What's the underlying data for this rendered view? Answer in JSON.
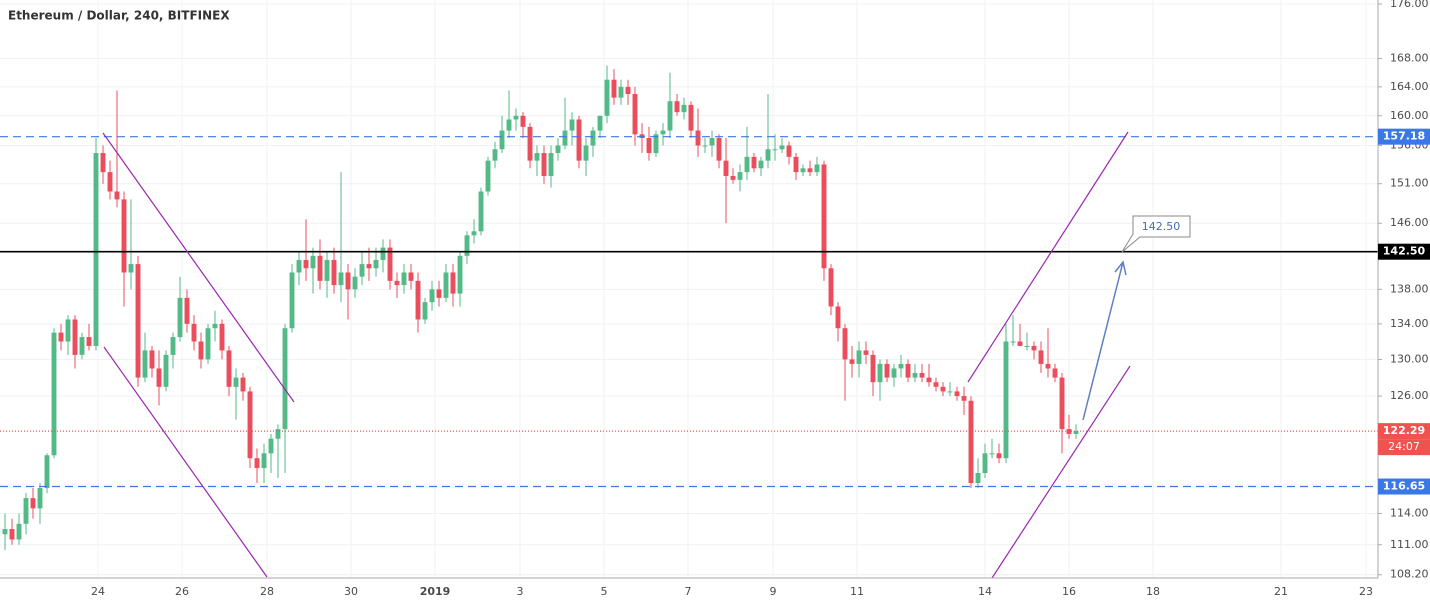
{
  "chart_data": {
    "type": "candlestick",
    "title": "Ethereum / Dollar, 240, BITFINEX",
    "log": true,
    "grid": true,
    "up_color": "#53b987",
    "down_color": "#eb4d5c",
    "ylim": [
      107.9,
      176.6
    ],
    "yticks": [
      {
        "value": 176,
        "label": "176.00"
      },
      {
        "value": 168,
        "label": "168.00"
      },
      {
        "value": 164,
        "label": "164.00"
      },
      {
        "value": 160,
        "label": "160.00"
      },
      {
        "value": 156,
        "label": "156.00"
      },
      {
        "value": 151,
        "label": "151.00"
      },
      {
        "value": 146,
        "label": "146.00"
      },
      {
        "value": 138,
        "label": "138.00"
      },
      {
        "value": 134,
        "label": "134.00"
      },
      {
        "value": 130,
        "label": "130.00"
      },
      {
        "value": 126,
        "label": "126.00"
      },
      {
        "value": 114,
        "label": "114.00"
      },
      {
        "value": 111,
        "label": "111.00"
      },
      {
        "value": 108.2,
        "label": "108.20"
      }
    ],
    "xticks": [
      "24",
      "26",
      "28",
      "30",
      "2019",
      "3",
      "5",
      "7",
      "9",
      "11",
      "14",
      "16",
      "18",
      "21",
      "23"
    ],
    "levels": [
      {
        "value": 157.18,
        "color": "#3a78e8",
        "style": "dashed"
      },
      {
        "value": 142.5,
        "label": "142.50",
        "color": "#000000",
        "style": "solid"
      },
      {
        "value": 122.29,
        "color": "#ef5350",
        "style": "dotted"
      },
      {
        "value": 116.65,
        "color": "#3a78e8",
        "style": "dashed"
      }
    ],
    "countdown": "24:07",
    "annotation": "142.50",
    "candles": [
      [
        112,
        114,
        110.5,
        112.5
      ],
      [
        112.5,
        113.5,
        111,
        111.5
      ],
      [
        111.5,
        114,
        111,
        113
      ],
      [
        113,
        116,
        112,
        115.5
      ],
      [
        115.5,
        116.5,
        113.5,
        114.5
      ],
      [
        114.5,
        117,
        113,
        116.5
      ],
      [
        116.5,
        120,
        116,
        119.8
      ],
      [
        119.8,
        133.5,
        119.5,
        133
      ],
      [
        133,
        134,
        131,
        132
      ],
      [
        132,
        135,
        130.5,
        134.5
      ],
      [
        134.5,
        135,
        129,
        130.5
      ],
      [
        130.5,
        133,
        130,
        132.5
      ],
      [
        132.5,
        134,
        131,
        131.5
      ],
      [
        131.5,
        157,
        131,
        155
      ],
      [
        155,
        156,
        151,
        152.5
      ],
      [
        152.5,
        154,
        149,
        150
      ],
      [
        150,
        163.5,
        148,
        149
      ],
      [
        149,
        150,
        136,
        140
      ],
      [
        140,
        149,
        138,
        141
      ],
      [
        141,
        142,
        127,
        128
      ],
      [
        128,
        133,
        127.5,
        131
      ],
      [
        131,
        131.5,
        128,
        129
      ],
      [
        129,
        131,
        125,
        127
      ],
      [
        127,
        131,
        126.5,
        130.5
      ],
      [
        130.5,
        133,
        129,
        132.5
      ],
      [
        132.5,
        139.5,
        132,
        137
      ],
      [
        137,
        138,
        133,
        134
      ],
      [
        134,
        135,
        131,
        132
      ],
      [
        132,
        133,
        129,
        130
      ],
      [
        130,
        134,
        129.5,
        133.5
      ],
      [
        133.5,
        135.5,
        132,
        134
      ],
      [
        134,
        134.5,
        130,
        131
      ],
      [
        131,
        131.5,
        126,
        127
      ],
      [
        127,
        129,
        123.5,
        128
      ],
      [
        128,
        128.5,
        125.5,
        126.5
      ],
      [
        126.5,
        127,
        118.5,
        119.5
      ],
      [
        119.5,
        120.5,
        117,
        118.5
      ],
      [
        118.5,
        121,
        117,
        120
      ],
      [
        120,
        122,
        118,
        121.5
      ],
      [
        121.5,
        123,
        117.5,
        122.5
      ],
      [
        122.5,
        134,
        118,
        133.5
      ],
      [
        133.5,
        141,
        133,
        140
      ],
      [
        140,
        142.5,
        138.5,
        141.5
      ],
      [
        141.5,
        146.5,
        139,
        140.5
      ],
      [
        140.5,
        143,
        137.5,
        142
      ],
      [
        142,
        144,
        138,
        139
      ],
      [
        139,
        142.5,
        137,
        141.5
      ],
      [
        141.5,
        143,
        137.5,
        138.5
      ],
      [
        138.5,
        152.5,
        136.5,
        140
      ],
      [
        140,
        141,
        134.5,
        138
      ],
      [
        138,
        140.5,
        137,
        139.5
      ],
      [
        139.5,
        142.5,
        138.5,
        141
      ],
      [
        141,
        143,
        139,
        140.5
      ],
      [
        140.5,
        143,
        139.5,
        141.5
      ],
      [
        141.5,
        144,
        140,
        143
      ],
      [
        143,
        144,
        138,
        139
      ],
      [
        139,
        140,
        137,
        138.5
      ],
      [
        138.5,
        141,
        137.5,
        140
      ],
      [
        140,
        141,
        138,
        139
      ],
      [
        139,
        140,
        133,
        134.5
      ],
      [
        134.5,
        137,
        134,
        136.5
      ],
      [
        136.5,
        139,
        135.5,
        138
      ],
      [
        138,
        139,
        136,
        137
      ],
      [
        137,
        141,
        136.5,
        140
      ],
      [
        140,
        141,
        136,
        137.5
      ],
      [
        137.5,
        142.5,
        136,
        142
      ],
      [
        142,
        145,
        141,
        144.5
      ],
      [
        144.5,
        146.5,
        143.5,
        145
      ],
      [
        145,
        150.5,
        144.5,
        150
      ],
      [
        150,
        154.5,
        149.5,
        154
      ],
      [
        154,
        156.5,
        153,
        155.5
      ],
      [
        155.5,
        160,
        155,
        158
      ],
      [
        158,
        163.5,
        157,
        159.5
      ],
      [
        159.5,
        161,
        158,
        160
      ],
      [
        160,
        160.5,
        157,
        158.5
      ],
      [
        158.5,
        159,
        153,
        154
      ],
      [
        154,
        156,
        152,
        155
      ],
      [
        155,
        156,
        151,
        152
      ],
      [
        152,
        156,
        150.5,
        155
      ],
      [
        155,
        157,
        154,
        156
      ],
      [
        156,
        162.5,
        155.5,
        158
      ],
      [
        158,
        160.5,
        156,
        159.5
      ],
      [
        159.5,
        160,
        153,
        154
      ],
      [
        154,
        157,
        152,
        156
      ],
      [
        156,
        158.5,
        154.5,
        158
      ],
      [
        158,
        160,
        157,
        160
      ],
      [
        160,
        167,
        159,
        165
      ],
      [
        165,
        166.5,
        161.5,
        162.5
      ],
      [
        162.5,
        165,
        161.5,
        164
      ],
      [
        164,
        165,
        161.5,
        163
      ],
      [
        163,
        164,
        156,
        157.5
      ],
      [
        157.5,
        159,
        155,
        157
      ],
      [
        157,
        158.5,
        154,
        155
      ],
      [
        155,
        158,
        154.5,
        157.5
      ],
      [
        157.5,
        159,
        156,
        158
      ],
      [
        158,
        166,
        157,
        162
      ],
      [
        162,
        163,
        160,
        160.5
      ],
      [
        160.5,
        162.5,
        159.5,
        161.5
      ],
      [
        161.5,
        162,
        157,
        158
      ],
      [
        158,
        161,
        154.5,
        156
      ],
      [
        156,
        157,
        155,
        156
      ],
      [
        156,
        158,
        154.5,
        157
      ],
      [
        157,
        157.5,
        153,
        154
      ],
      [
        154,
        157,
        146,
        152
      ],
      [
        152,
        153,
        151,
        151.5
      ],
      [
        151.5,
        153.5,
        150,
        152.5
      ],
      [
        152.5,
        158.5,
        151.5,
        154.5
      ],
      [
        154.5,
        155,
        152.5,
        153
      ],
      [
        153,
        154.5,
        152,
        154
      ],
      [
        154,
        163,
        153,
        155.5
      ],
      [
        155.5,
        157.5,
        154,
        155.5
      ],
      [
        155.5,
        157,
        155,
        156
      ],
      [
        156,
        156.5,
        153.5,
        154.5
      ],
      [
        154.5,
        155,
        151.5,
        152.5
      ],
      [
        152.5,
        153.5,
        152,
        153
      ],
      [
        153,
        154,
        152,
        152.5
      ],
      [
        152.5,
        154.5,
        152,
        153.5
      ],
      [
        153.5,
        154,
        139,
        140.5
      ],
      [
        140.5,
        141,
        135,
        136
      ],
      [
        136,
        136.5,
        132,
        133.5
      ],
      [
        133.5,
        134,
        125.5,
        130
      ],
      [
        130,
        131.5,
        128,
        129.5
      ],
      [
        129.5,
        132,
        128,
        131
      ],
      [
        131,
        132,
        129.5,
        130.5
      ],
      [
        130.5,
        131,
        126,
        127.5
      ],
      [
        127.5,
        130,
        125.5,
        129.5
      ],
      [
        129.5,
        130,
        127.5,
        128
      ],
      [
        128,
        129.5,
        127,
        129
      ],
      [
        129,
        130.5,
        128,
        129.5
      ],
      [
        129.5,
        130,
        127.5,
        128
      ],
      [
        128,
        129.5,
        127.5,
        128.5
      ],
      [
        128.5,
        129.5,
        127.5,
        128
      ],
      [
        128,
        129.5,
        127,
        127.5
      ],
      [
        127.5,
        128,
        126.5,
        127
      ],
      [
        127,
        127.5,
        126,
        126.5
      ],
      [
        126.5,
        127.5,
        126,
        126.5
      ],
      [
        126.5,
        127,
        125.5,
        126
      ],
      [
        126,
        127,
        124,
        125.5
      ],
      [
        125.5,
        126,
        116.5,
        117
      ],
      [
        117,
        119.5,
        116.5,
        118
      ],
      [
        118,
        121,
        117.5,
        120
      ],
      [
        120,
        121.5,
        119.5,
        120
      ],
      [
        120,
        121,
        119,
        119.5
      ],
      [
        119.5,
        134,
        119,
        132
      ],
      [
        132,
        135,
        131.5,
        132
      ],
      [
        132,
        134,
        131.5,
        131.5
      ],
      [
        131.5,
        133,
        131,
        131.5
      ],
      [
        131.5,
        132,
        130,
        131
      ],
      [
        131,
        132,
        128.5,
        129.5
      ],
      [
        129.5,
        133.5,
        128,
        129
      ],
      [
        129,
        129.5,
        127.5,
        128
      ],
      [
        128,
        128.5,
        120,
        122.5
      ],
      [
        122.5,
        124,
        121.5,
        122
      ],
      [
        122,
        123,
        121.5,
        122.29
      ]
    ]
  }
}
